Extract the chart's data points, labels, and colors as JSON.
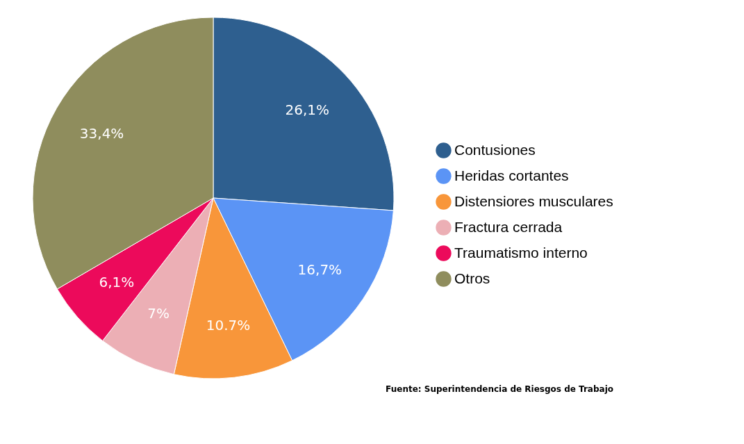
{
  "chart_data": {
    "type": "pie",
    "categories": [
      "Contusiones",
      "Heridas cortantes",
      "Distensiores musculares",
      "Fractura cerrada",
      "Traumatismo interno",
      "Otros"
    ],
    "values": [
      26.1,
      16.7,
      10.7,
      7,
      6.1,
      33.4
    ],
    "value_labels": [
      "26,1%",
      "16,7%",
      "10.7%",
      "7%",
      "6,1%",
      "33,4%"
    ],
    "colors": [
      "#2e5f8f",
      "#5b94f5",
      "#f8963a",
      "#ecafb5",
      "#ec0a5b",
      "#8f8d5d"
    ],
    "legend": "right",
    "annotations": [
      "Fuente: Superintendencia de Riesgos de Trabajo"
    ]
  }
}
